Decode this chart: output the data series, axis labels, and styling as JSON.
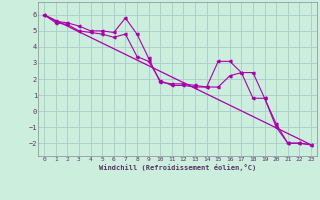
{
  "xlabel": "Windchill (Refroidissement éolien,°C)",
  "bg_color": "#cceedd",
  "grid_color": "#aacccc",
  "line_color": "#aa00aa",
  "xlim": [
    -0.5,
    23.5
  ],
  "ylim": [
    -2.8,
    6.8
  ],
  "yticks": [
    -2,
    -1,
    0,
    1,
    2,
    3,
    4,
    5,
    6
  ],
  "xticks": [
    0,
    1,
    2,
    3,
    4,
    5,
    6,
    7,
    8,
    9,
    10,
    11,
    12,
    13,
    14,
    15,
    16,
    17,
    18,
    19,
    20,
    21,
    22,
    23
  ],
  "line1_x": [
    0,
    1,
    2,
    3,
    4,
    5,
    6,
    7,
    8,
    9,
    10,
    11,
    12,
    13,
    14,
    15,
    16,
    17,
    18,
    19,
    20,
    21,
    22,
    23
  ],
  "line1_y": [
    6.0,
    5.6,
    5.5,
    5.3,
    5.0,
    5.0,
    4.9,
    5.8,
    4.8,
    3.3,
    1.8,
    1.7,
    1.7,
    1.6,
    1.5,
    3.1,
    3.1,
    2.4,
    2.4,
    0.8,
    -0.8,
    -2.0,
    -2.0,
    -2.1
  ],
  "line2_x": [
    0,
    1,
    2,
    3,
    4,
    5,
    6,
    7,
    8,
    9,
    10,
    11,
    12,
    13,
    14,
    15,
    16,
    17,
    18,
    19,
    20,
    21,
    22,
    23
  ],
  "line2_y": [
    6.0,
    5.5,
    5.4,
    5.0,
    4.9,
    4.8,
    4.6,
    4.8,
    3.4,
    3.1,
    1.9,
    1.6,
    1.6,
    1.5,
    1.5,
    1.5,
    2.2,
    2.4,
    0.8,
    0.8,
    -1.0,
    -2.0,
    -2.0,
    -2.1
  ],
  "line3_x": [
    0,
    23
  ],
  "line3_y": [
    6.0,
    -2.1
  ]
}
